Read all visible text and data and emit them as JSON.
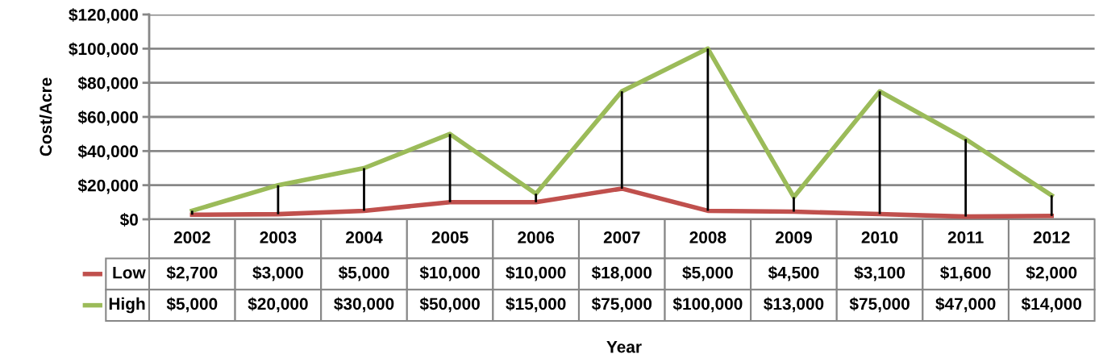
{
  "chart_data": {
    "type": "line",
    "annotations": [
      "Year"
    ],
    "ylabel": "Cost/Acre",
    "categories": [
      "2002",
      "2003",
      "2004",
      "2005",
      "2006",
      "2007",
      "2008",
      "2009",
      "2010",
      "2011",
      "2012"
    ],
    "series": [
      {
        "name": "Low",
        "color": "#c0504d",
        "values": [
          2700,
          3000,
          5000,
          10000,
          10000,
          18000,
          5000,
          4500,
          3100,
          1600,
          2000
        ],
        "value_labels": [
          "$2,700",
          "$3,000",
          "$5,000",
          "$10,000",
          "$10,000",
          "$18,000",
          "$5,000",
          "$4,500",
          "$3,100",
          "$1,600",
          "$2,000"
        ]
      },
      {
        "name": "High",
        "color": "#9bbb59",
        "values": [
          5000,
          20000,
          30000,
          50000,
          15000,
          75000,
          100000,
          13000,
          75000,
          47000,
          14000
        ],
        "errors": [
          [
            2700,
            5000
          ],
          [
            3000,
            20000
          ],
          [
            5000,
            30000
          ],
          [
            10000,
            50000
          ],
          [
            10000,
            15000
          ],
          [
            18000,
            75000
          ],
          [
            5000,
            100000
          ],
          [
            4500,
            13000
          ],
          [
            3100,
            75000
          ],
          [
            1600,
            47000
          ],
          [
            2000,
            14000
          ]
        ],
        "value_labels": [
          "$5,000",
          "$20,000",
          "$30,000",
          "$50,000",
          "$15,000",
          "$75,000",
          "$100,000",
          "$13,000",
          "$75,000",
          "$47,000",
          "$14,000"
        ]
      }
    ],
    "ylim": [
      0,
      120000
    ],
    "yticks": [
      {
        "value": 0,
        "label": "$0"
      },
      {
        "value": 20000,
        "label": "$20,000"
      },
      {
        "value": 40000,
        "label": "$40,000"
      },
      {
        "value": 60000,
        "label": "$60,000"
      },
      {
        "value": 80000,
        "label": "$80,000"
      },
      {
        "value": 100000,
        "label": "$100,000"
      },
      {
        "value": 120000,
        "label": "$120,000"
      }
    ],
    "grid": "y",
    "legend": "left",
    "marker": "none",
    "line_style": "solid"
  }
}
